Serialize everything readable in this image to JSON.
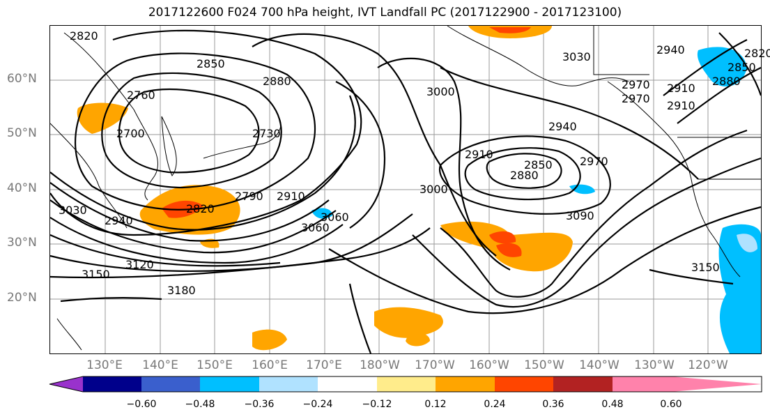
{
  "title": "2017122600 F024 700 hPa height, IVT Landfall PC (2017122900 - 2017123100)",
  "lat_labels": [
    "60°N",
    "50°N",
    "40°N",
    "30°N",
    "20°N"
  ],
  "lon_labels": [
    "130°E",
    "140°E",
    "150°E",
    "160°E",
    "170°E",
    "180°W",
    "170°W",
    "160°W",
    "150°W",
    "140°W",
    "130°W",
    "120°W"
  ],
  "contour_labels": [
    "2820",
    "2850",
    "2760",
    "2700",
    "2880",
    "2730",
    "3000",
    "3030",
    "2940",
    "2970",
    "2910",
    "2850",
    "2880",
    "2970",
    "2910",
    "2910",
    "3000",
    "3060",
    "3090",
    "2820",
    "2790",
    "2940",
    "3030",
    "3120",
    "3150",
    "3180",
    "3150",
    "2940",
    "2880",
    "2850",
    "2820",
    "2910",
    "2970",
    "3060"
  ],
  "colorbar": {
    "ticks": [
      "−0.60",
      "−0.48",
      "−0.36",
      "−0.24",
      "−0.12",
      "0.12",
      "0.24",
      "0.36",
      "0.48",
      "0.60"
    ],
    "colors": [
      "#9932cc",
      "#00008b",
      "#3a5fcd",
      "#00bfff",
      "#b0e2ff",
      "#ffffff",
      "#ffec8b",
      "#ffa500",
      "#ff4500",
      "#b22222",
      "#ff82ab"
    ]
  }
}
